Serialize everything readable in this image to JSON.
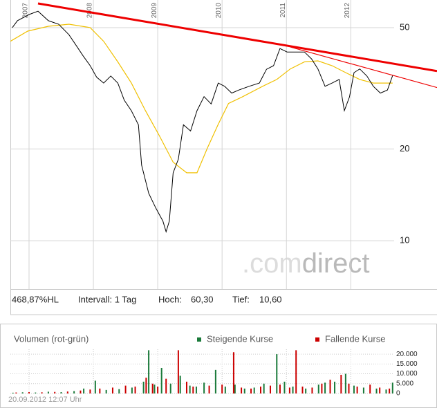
{
  "chart_data": [
    {
      "type": "line",
      "ylog": true,
      "grid": true,
      "xlim": [
        2006.71,
        2013.34
      ],
      "xticks": [
        2007,
        2008,
        2009,
        2010,
        2011,
        2012
      ],
      "ylim": [
        6.94,
        61.6
      ],
      "yticks": [
        10,
        20,
        50
      ],
      "price": {
        "color": "#000000",
        "x": [
          2006.74,
          2006.82,
          2007.0,
          2007.14,
          2007.3,
          2007.46,
          2007.62,
          2007.73,
          2007.84,
          2007.95,
          2008.05,
          2008.16,
          2008.27,
          2008.38,
          2008.48,
          2008.59,
          2008.7,
          2008.75,
          2008.86,
          2008.97,
          2009.08,
          2009.13,
          2009.18,
          2009.24,
          2009.32,
          2009.4,
          2009.51,
          2009.61,
          2009.72,
          2009.83,
          2009.94,
          2010.04,
          2010.15,
          2010.26,
          2010.42,
          2010.58,
          2010.69,
          2010.8,
          2010.9,
          2011.01,
          2011.12,
          2011.28,
          2011.39,
          2011.49,
          2011.6,
          2011.71,
          2011.82,
          2011.9,
          2011.98,
          2012.05,
          2012.14,
          2012.25,
          2012.35,
          2012.46,
          2012.57,
          2012.65
        ],
        "values": [
          50,
          52.7,
          55.2,
          56.6,
          52.7,
          51.3,
          47.4,
          43.8,
          40.4,
          37.5,
          34.4,
          32.9,
          34.7,
          32.9,
          28.9,
          26.7,
          24.0,
          17.7,
          14.3,
          12.8,
          11.6,
          10.7,
          11.6,
          16.7,
          18.5,
          24.0,
          22.9,
          26.7,
          29.7,
          28.1,
          32.9,
          32.1,
          30.5,
          31.2,
          32.1,
          32.9,
          36.5,
          37.5,
          42.7,
          41.6,
          41.6,
          41.6,
          39.5,
          36.6,
          32.1,
          32.9,
          33.8,
          26.7,
          29.6,
          35.6,
          36.6,
          34.7,
          32.1,
          30.5,
          31.2,
          34.8
        ]
      },
      "moving_average": {
        "color": "#f0c000",
        "x": [
          2006.71,
          2006.98,
          2007.3,
          2007.62,
          2007.95,
          2008.16,
          2008.38,
          2008.59,
          2008.81,
          2009.02,
          2009.24,
          2009.45,
          2009.61,
          2009.77,
          2009.94,
          2010.1,
          2010.31,
          2010.63,
          2010.85,
          2011.06,
          2011.28,
          2011.49,
          2011.71,
          2011.92,
          2012.14,
          2012.35,
          2012.65
        ],
        "values": [
          45.1,
          48.7,
          50.5,
          51.3,
          50,
          45.1,
          38.6,
          32.9,
          26.7,
          22.2,
          18.1,
          16.7,
          16.7,
          20.1,
          24.1,
          28.2,
          29.6,
          32.1,
          33.8,
          36.6,
          38.6,
          38.9,
          37.5,
          35.6,
          33.8,
          32.9,
          32.9
        ]
      },
      "trendlines": [
        {
          "color": "#ee0000",
          "x": [
            2007.14,
            2013.34
          ],
          "values": [
            60.0,
            36.0
          ]
        },
        {
          "color": "#ee0000",
          "x": [
            2011.06,
            2013.34
          ],
          "values": [
            43.2,
            31.8
          ]
        }
      ],
      "watermark": [
        ".com",
        "direct"
      ],
      "info": [
        "468,87%HL",
        "Intervall: 1 Tag",
        "Hoch:",
        "60,30",
        "Tief:",
        "10,60"
      ]
    },
    {
      "type": "bar",
      "title": "Volumen (rot-grün)",
      "grid": true,
      "xlim": [
        2006.71,
        2013.34
      ],
      "xticks": [
        2007,
        2008,
        2009,
        2010,
        2011,
        2012
      ],
      "ylim": [
        0,
        22500
      ],
      "yticks": [
        {
          "value": 20000,
          "label": "20.000"
        },
        {
          "value": 15000,
          "label": "15.000"
        },
        {
          "value": 10000,
          "label": "10.000"
        },
        {
          "value": 5000,
          "label": "5.000"
        },
        0
      ],
      "series": [
        {
          "name": "Steigende Kurse",
          "color": "#1a7a3a",
          "x": [
            2006.75,
            2006.9,
            2007.1,
            2007.3,
            2007.5,
            2007.7,
            2007.85,
            2008.03,
            2008.2,
            2008.4,
            2008.6,
            2008.78,
            2008.86,
            2008.95,
            2009.06,
            2009.2,
            2009.35,
            2009.5,
            2009.6,
            2009.72,
            2009.9,
            2010.05,
            2010.2,
            2010.35,
            2010.5,
            2010.65,
            2010.85,
            2010.97,
            2011.1,
            2011.3,
            2011.5,
            2011.6,
            2011.75,
            2011.92,
            2012.05,
            2012.2,
            2012.4,
            2012.55,
            2012.65
          ],
          "values": [
            400,
            600,
            500,
            900,
            700,
            1200,
            2500,
            6500,
            1800,
            2200,
            3000,
            6000,
            22000,
            4500,
            13000,
            5000,
            9000,
            4000,
            3500,
            5500,
            12000,
            3500,
            4500,
            2500,
            3000,
            5000,
            20000,
            6000,
            3500,
            2500,
            4500,
            5500,
            6000,
            10000,
            4000,
            3000,
            2500,
            2000,
            5500
          ]
        },
        {
          "name": "Fallende Kurse",
          "color": "#cc0000",
          "x": [
            2006.8,
            2007.0,
            2007.2,
            2007.4,
            2007.6,
            2007.8,
            2007.95,
            2008.1,
            2008.3,
            2008.5,
            2008.65,
            2008.82,
            2008.92,
            2009.0,
            2009.13,
            2009.32,
            2009.45,
            2009.55,
            2009.8,
            2010.0,
            2010.18,
            2010.3,
            2010.45,
            2010.6,
            2010.75,
            2010.9,
            2011.05,
            2011.15,
            2011.25,
            2011.4,
            2011.55,
            2011.68,
            2011.85,
            2011.97,
            2012.1,
            2012.3,
            2012.45,
            2012.6
          ],
          "values": [
            500,
            700,
            600,
            800,
            1000,
            1500,
            2000,
            2500,
            3000,
            4000,
            3500,
            8000,
            5000,
            3500,
            7500,
            22000,
            6000,
            3500,
            4000,
            4500,
            21000,
            3000,
            2500,
            3500,
            4000,
            4500,
            3000,
            22000,
            3500,
            3000,
            5000,
            7000,
            9500,
            5000,
            3500,
            4500,
            3000,
            2500
          ]
        }
      ]
    }
  ],
  "timestamp": "20.09.2012 12:07 Uhr"
}
